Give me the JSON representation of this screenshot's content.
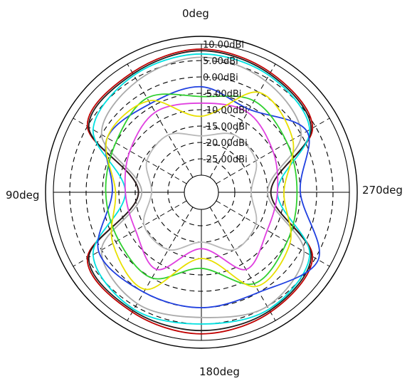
{
  "chart_data": {
    "type": "polar-line",
    "angle_labels": {
      "top": "0deg",
      "left": "90deg",
      "right": "270deg",
      "bottom": "180deg"
    },
    "angle_direction": "counter-clockwise from top",
    "radial_labels": [
      "10.00dBi",
      "5.00dBi",
      "0.00dBi",
      "-5.00dBi",
      "-10.00dBi",
      "-15.00dBi",
      "-20.00dBi",
      "-25.00dBi"
    ],
    "radial_values_dBi": [
      10,
      5,
      0,
      -5,
      -10,
      -15,
      -20,
      -25
    ],
    "rlim": [
      -30,
      10
    ],
    "grid": true,
    "angles_deg": [
      0,
      30,
      60,
      90,
      120,
      150,
      180,
      210,
      240,
      270,
      300,
      330
    ],
    "series": [
      {
        "color": "#c00000",
        "values": [
          8.5,
          7,
          5,
          -16,
          5,
          7,
          8,
          7,
          4,
          -14,
          4,
          7
        ]
      },
      {
        "color": "#202020",
        "values": [
          8,
          6.5,
          4.5,
          -16,
          4.5,
          6.5,
          7,
          6.5,
          3.5,
          -14,
          3.5,
          6.5
        ]
      },
      {
        "color": "#00e0e0",
        "values": [
          7,
          6,
          3,
          -12,
          3,
          6,
          5,
          6,
          3,
          -12,
          3,
          6
        ]
      },
      {
        "color": "#aaaaaa",
        "values": [
          6,
          4,
          0,
          -17,
          0,
          4,
          3,
          5,
          1,
          -15,
          0,
          4
        ]
      },
      {
        "color": "#2040e0",
        "values": [
          -3,
          -4,
          -2,
          -8,
          1,
          0,
          0,
          0,
          6,
          -5,
          2,
          -6
        ]
      },
      {
        "color": "#e040e0",
        "values": [
          -8,
          -7,
          -10,
          -12,
          -12,
          -8,
          -18,
          -8,
          -12,
          -12,
          -10,
          -7
        ]
      },
      {
        "color": "#30d030",
        "values": [
          -6,
          -2,
          -5,
          -6,
          -6,
          -5,
          -12,
          -3,
          -5,
          -6,
          -5,
          -3
        ]
      },
      {
        "color": "#e8e000",
        "values": [
          -12,
          -3,
          -2,
          -9,
          -4,
          -1,
          -15,
          -2,
          -4,
          -10,
          -3,
          0
        ]
      },
      {
        "color": "#b8b8b8",
        "values": [
          -18,
          -15,
          -16,
          -20,
          -15,
          -15,
          -20,
          -15,
          -16,
          -20,
          -16,
          -15
        ]
      }
    ]
  }
}
